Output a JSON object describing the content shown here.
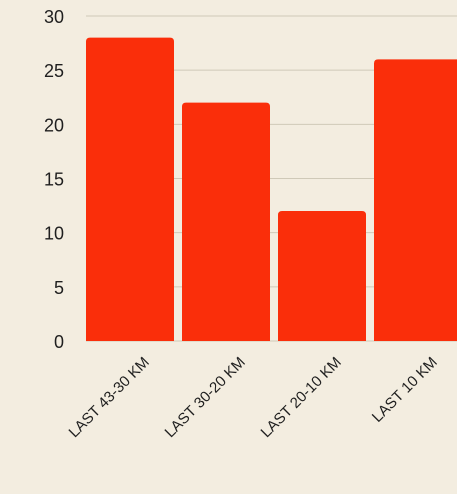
{
  "chart_data": {
    "type": "bar",
    "categories": [
      "LAST 43-30 KM",
      "LAST 30-20 KM",
      "LAST 20-10 KM",
      "LAST 10 KM"
    ],
    "values": [
      28,
      22,
      12,
      26
    ],
    "title": "",
    "xlabel": "",
    "ylabel": "",
    "ylim": [
      0,
      30
    ],
    "yticks": [
      0,
      5,
      10,
      15,
      20,
      25,
      30
    ],
    "grid": true,
    "legend": "none",
    "bar_color": "#FA2E0A",
    "background_color": "#F3EDE0"
  }
}
